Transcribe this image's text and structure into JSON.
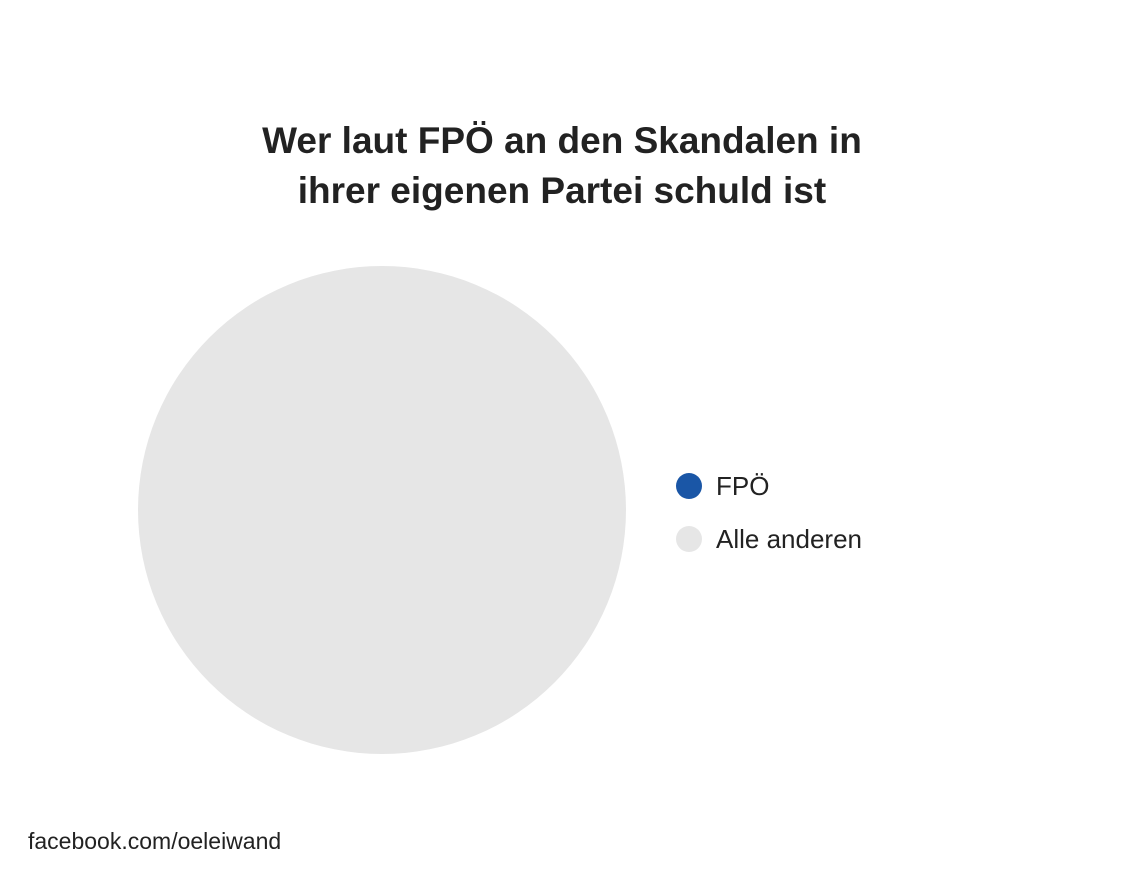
{
  "chart_data": {
    "type": "pie",
    "title_lines": [
      "Wer laut FPÖ an den Skandalen in",
      "ihrer eigenen Partei schuld ist"
    ],
    "slices": [
      {
        "label": "FPÖ",
        "value": 0,
        "color": "#1a56a6"
      },
      {
        "label": "Alle anderen",
        "value": 100,
        "color": "#e6e6e6"
      }
    ],
    "legend_position": "right"
  },
  "footer": {
    "source": "facebook.com/oeleiwand"
  }
}
